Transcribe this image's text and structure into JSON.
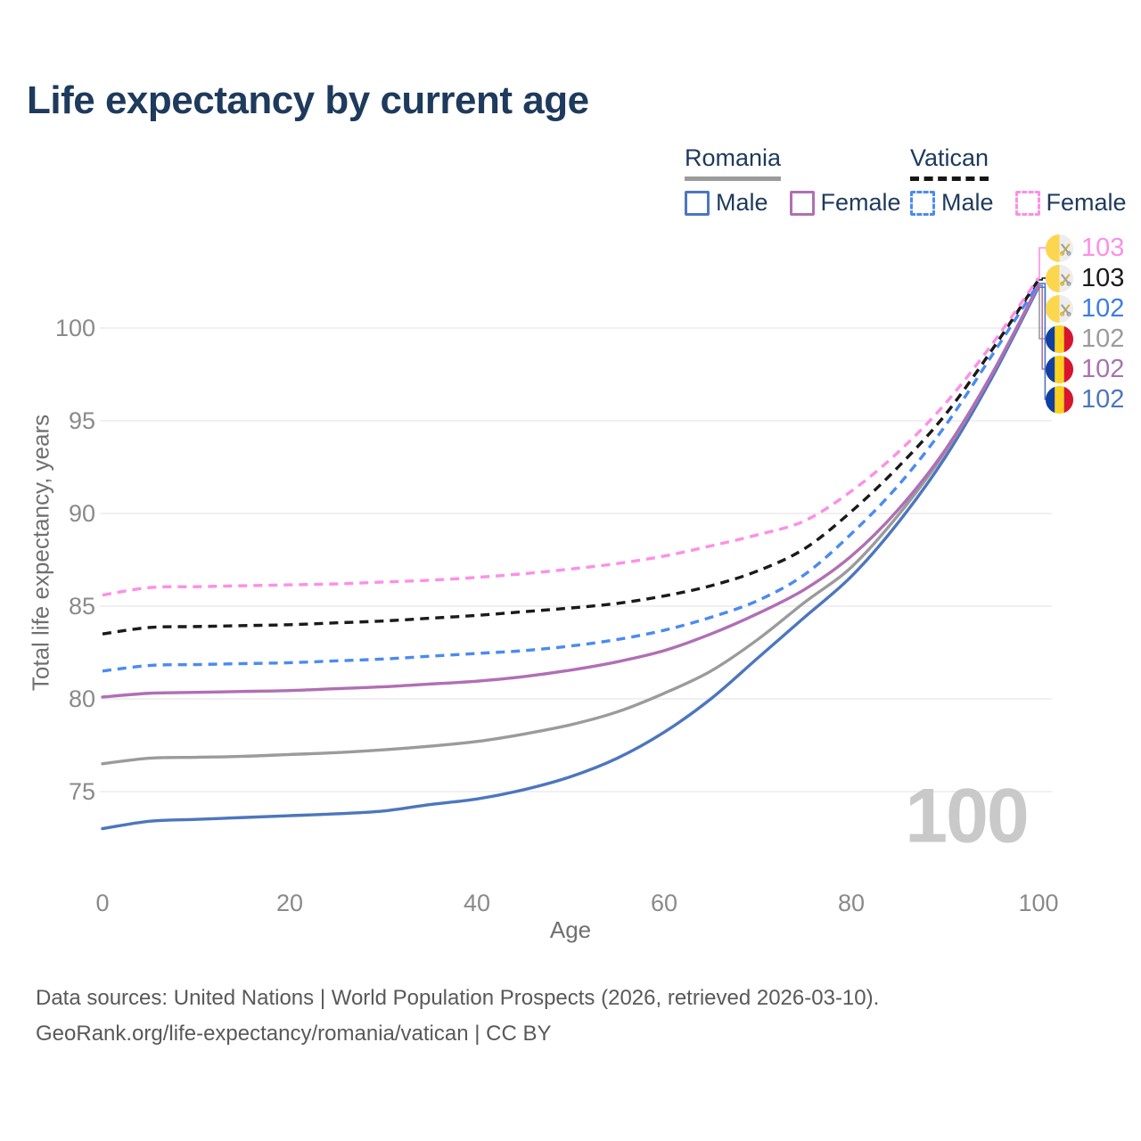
{
  "title": "Life expectancy by current age",
  "legend": {
    "groups": [
      {
        "label": "Romania",
        "line_style": "solid",
        "underline_color": "#9b9b9b",
        "items": [
          {
            "label": "Male",
            "color": "#4d76be"
          },
          {
            "label": "Female",
            "color": "#b06fb5"
          }
        ]
      },
      {
        "label": "Vatican",
        "line_style": "dashed",
        "underline_color": "#161616",
        "items": [
          {
            "label": "Male",
            "color": "#4b8bf0"
          },
          {
            "label": "Female",
            "color": "#fd8fe7"
          }
        ]
      }
    ]
  },
  "chart_data": {
    "type": "line",
    "title": "Life expectancy by current age",
    "xlabel": "Age",
    "ylabel": "Total life expectancy, years",
    "xlim": [
      0,
      100
    ],
    "ylim": [
      72,
      104
    ],
    "xticks": [
      0,
      20,
      40,
      60,
      80,
      100
    ],
    "yticks": [
      75,
      80,
      85,
      90,
      95,
      100
    ],
    "grid": "horizontal",
    "legend_position": "top-right",
    "watermark": "100",
    "x": [
      0,
      5,
      10,
      15,
      20,
      25,
      30,
      35,
      40,
      45,
      50,
      55,
      60,
      65,
      70,
      75,
      80,
      85,
      90,
      95,
      100
    ],
    "series": [
      {
        "id": "vatican-female",
        "name": "Vatican Female",
        "country": "Vatican",
        "sex": "Female",
        "color": "#fd8fe7",
        "dash": true,
        "values": [
          85.6,
          86.0,
          86.05,
          86.1,
          86.15,
          86.2,
          86.3,
          86.4,
          86.55,
          86.75,
          87.0,
          87.3,
          87.7,
          88.25,
          88.85,
          89.6,
          91.2,
          93.3,
          95.9,
          99.1,
          102.7
        ]
      },
      {
        "id": "vatican-total",
        "name": "Vatican Both sexes",
        "country": "Vatican",
        "sex": "Both",
        "color": "#1a1a1a",
        "dash": true,
        "values": [
          83.5,
          83.85,
          83.9,
          83.95,
          84.0,
          84.1,
          84.2,
          84.35,
          84.5,
          84.7,
          84.9,
          85.15,
          85.55,
          86.1,
          86.9,
          88.1,
          90.1,
          92.5,
          95.3,
          98.8,
          102.6
        ]
      },
      {
        "id": "vatican-male",
        "name": "Vatican Male",
        "country": "Vatican",
        "sex": "Male",
        "color": "#4b8bf0",
        "dash": true,
        "values": [
          81.5,
          81.8,
          81.85,
          81.9,
          81.95,
          82.05,
          82.15,
          82.3,
          82.45,
          82.6,
          82.85,
          83.2,
          83.7,
          84.4,
          85.3,
          86.7,
          88.9,
          91.5,
          94.7,
          98.5,
          102.4
        ]
      },
      {
        "id": "romania-female",
        "name": "Romania Female",
        "country": "Romania",
        "sex": "Female",
        "color": "#b06fb5",
        "dash": false,
        "values": [
          80.1,
          80.3,
          80.35,
          80.4,
          80.45,
          80.55,
          80.65,
          80.8,
          80.95,
          81.2,
          81.55,
          82.0,
          82.6,
          83.5,
          84.6,
          85.9,
          87.7,
          90.2,
          93.4,
          97.5,
          102.3
        ]
      },
      {
        "id": "romania-total",
        "name": "Romania Both sexes",
        "country": "Romania",
        "sex": "Both",
        "color": "#9b9b9b",
        "dash": false,
        "values": [
          76.5,
          76.8,
          76.85,
          76.9,
          77.0,
          77.1,
          77.25,
          77.45,
          77.7,
          78.1,
          78.6,
          79.3,
          80.3,
          81.5,
          83.2,
          85.2,
          87.1,
          89.9,
          93.3,
          97.5,
          102.3
        ]
      },
      {
        "id": "romania-male",
        "name": "Romania Male",
        "country": "Romania",
        "sex": "Male",
        "color": "#4d76be",
        "dash": false,
        "values": [
          73.0,
          73.4,
          73.5,
          73.6,
          73.7,
          73.8,
          73.95,
          74.3,
          74.6,
          75.1,
          75.8,
          76.8,
          78.2,
          80.0,
          82.2,
          84.4,
          86.6,
          89.5,
          93.0,
          97.3,
          102.2
        ]
      }
    ],
    "end_labels": [
      {
        "series": "vatican-female",
        "value": "103",
        "color": "#fd8fe7",
        "flag": "vatican"
      },
      {
        "series": "vatican-total",
        "value": "103",
        "color": "#1a1a1a",
        "flag": "vatican"
      },
      {
        "series": "vatican-male",
        "value": "102",
        "color": "#3f7de0",
        "flag": "vatican"
      },
      {
        "series": "romania-total",
        "value": "102",
        "color": "#9b9b9b",
        "flag": "romania"
      },
      {
        "series": "romania-female",
        "value": "102",
        "color": "#a873ae",
        "flag": "romania"
      },
      {
        "series": "romania-male",
        "value": "102",
        "color": "#4d76be",
        "flag": "romania"
      }
    ]
  },
  "footer": {
    "line1": "Data sources: United Nations | World Population Prospects (2026, retrieved 2026-03-10).",
    "line2": "GeoRank.org/life-expectancy/romania/vatican | CC BY"
  }
}
